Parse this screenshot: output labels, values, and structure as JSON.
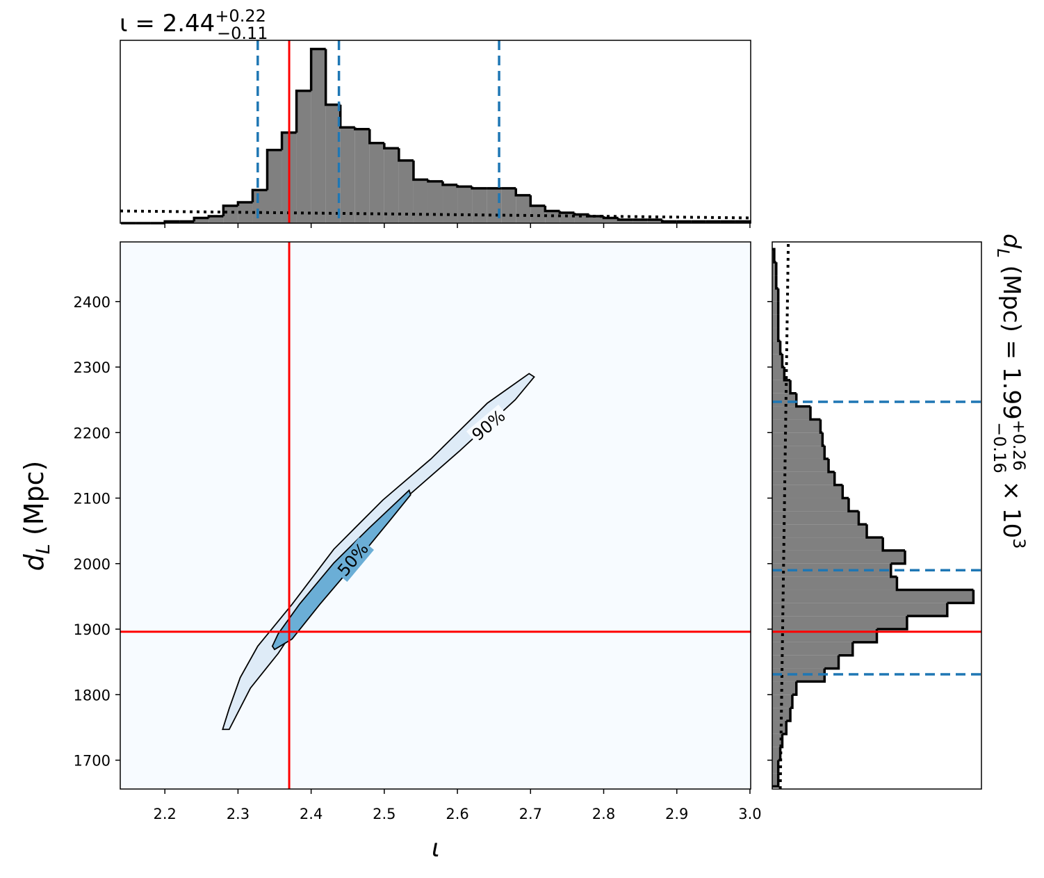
{
  "chart_data": [
    {
      "type": "histogram",
      "orientation": "vertical",
      "title": {
        "main": "ι = 2.44",
        "sup": "+0.22",
        "sub": "−0.11"
      },
      "bins": [
        2.14,
        2.16,
        2.18,
        2.2,
        2.22,
        2.24,
        2.26,
        2.28,
        2.3,
        2.32,
        2.34,
        2.36,
        2.38,
        2.4,
        2.42,
        2.44,
        2.46,
        2.48,
        2.5,
        2.52,
        2.54,
        2.56,
        2.58,
        2.6,
        2.62,
        2.64,
        2.66,
        2.68,
        2.7,
        2.72,
        2.74,
        2.76,
        2.78,
        2.8,
        2.82,
        2.84,
        2.86,
        2.88,
        2.9,
        2.92,
        2.94,
        2.96,
        2.98,
        3.0
      ],
      "counts": [
        0,
        0,
        0,
        1,
        1,
        3,
        4,
        10,
        12,
        19,
        42,
        52,
        76,
        100,
        68,
        55,
        54,
        46,
        43,
        36,
        25,
        24,
        22,
        21,
        20,
        20,
        20,
        16,
        10,
        7,
        6,
        5,
        4,
        3,
        2,
        2,
        2,
        1,
        1,
        1,
        1,
        1,
        1
      ],
      "color": "#808080",
      "edge_color": "#000000",
      "prior": {
        "x": [
          2.139,
          3.001
        ],
        "y": [
          7,
          3
        ]
      },
      "quantiles": [
        2.327,
        2.438,
        2.657
      ],
      "quantile_color": "#1f77b4",
      "truth": 2.37,
      "truth_color": "#ff0000",
      "xlim": [
        2.139,
        3.001
      ],
      "ylim": [
        0,
        105
      ]
    },
    {
      "type": "contour",
      "xlabel": "ι",
      "ylabel": {
        "main": "d",
        "sub": "L",
        "rest": " (Mpc)"
      },
      "xlim": [
        2.139,
        3.001
      ],
      "ylim": [
        1656,
        2491
      ],
      "xticks": [
        2.2,
        2.3,
        2.4,
        2.5,
        2.6,
        2.7,
        2.8,
        2.9,
        {
          "value": 3,
          "label": "3.0"
        }
      ],
      "yticks": [
        1700,
        1800,
        1900,
        2000,
        2100,
        2200,
        2300,
        2400
      ],
      "contours": [
        {
          "label": "90%",
          "color": "#deebf7",
          "x": [
            2.279,
            2.288,
            2.303,
            2.327,
            2.374,
            2.431,
            2.498,
            2.564,
            2.641,
            2.698,
            2.705,
            2.679,
            2.602,
            2.526,
            2.45,
            2.393,
            2.355,
            2.317,
            2.288
          ],
          "y": [
            1747,
            1779,
            1826,
            1874,
            1938,
            2022,
            2097,
            2160,
            2245,
            2290,
            2285,
            2250,
            2171,
            2097,
            2012,
            1927,
            1863,
            1810,
            1747
          ]
        },
        {
          "label": "50%",
          "color": "#6baed6",
          "x": [
            2.347,
            2.355,
            2.384,
            2.431,
            2.479,
            2.534,
            2.536,
            2.507,
            2.46,
            2.412,
            2.374,
            2.35
          ],
          "y": [
            1874,
            1893,
            1938,
            2001,
            2054,
            2112,
            2105,
            2065,
            2001,
            1938,
            1885,
            1869
          ]
        }
      ],
      "truth_x": 2.37,
      "truth_y": 1896,
      "truth_color": "#ff0000",
      "background": "#f7fbff"
    },
    {
      "type": "histogram",
      "orientation": "horizontal",
      "label": {
        "main": "d",
        "sub": "L",
        "mid": " (Mpc) = 1.99",
        "sup": "+0.26",
        "sub2": "−0.16",
        "times": " × 10",
        "exp": "3"
      },
      "bins": [
        1660,
        1680,
        1700,
        1720,
        1740,
        1760,
        1780,
        1800,
        1820,
        1840,
        1860,
        1880,
        1900,
        1920,
        1940,
        1960,
        1980,
        2000,
        2020,
        2040,
        2060,
        2080,
        2100,
        2120,
        2140,
        2160,
        2180,
        2200,
        2220,
        2240,
        2260,
        2280,
        2300,
        2320,
        2340,
        2360,
        2380,
        2400,
        2420,
        2440,
        2460,
        2480
      ],
      "counts": [
        3,
        3,
        4,
        5,
        7,
        9,
        10,
        12,
        26,
        33,
        40,
        52,
        67,
        87,
        100,
        62,
        59,
        66,
        55,
        47,
        43,
        38,
        35,
        31,
        28,
        26,
        25,
        24,
        19,
        12,
        9,
        6,
        5,
        4,
        3,
        3,
        3,
        3,
        2,
        2,
        1
      ],
      "color": "#808080",
      "edge_color": "#000000",
      "prior": {
        "x": [
          4,
          8
        ],
        "y": [
          1656,
          2491
        ]
      },
      "quantiles": [
        1831,
        1990,
        2247
      ],
      "quantile_color": "#1f77b4",
      "truth": 1896,
      "truth_color": "#ff0000",
      "xlim": [
        0,
        104
      ],
      "ylim": [
        1656,
        2491
      ]
    }
  ]
}
